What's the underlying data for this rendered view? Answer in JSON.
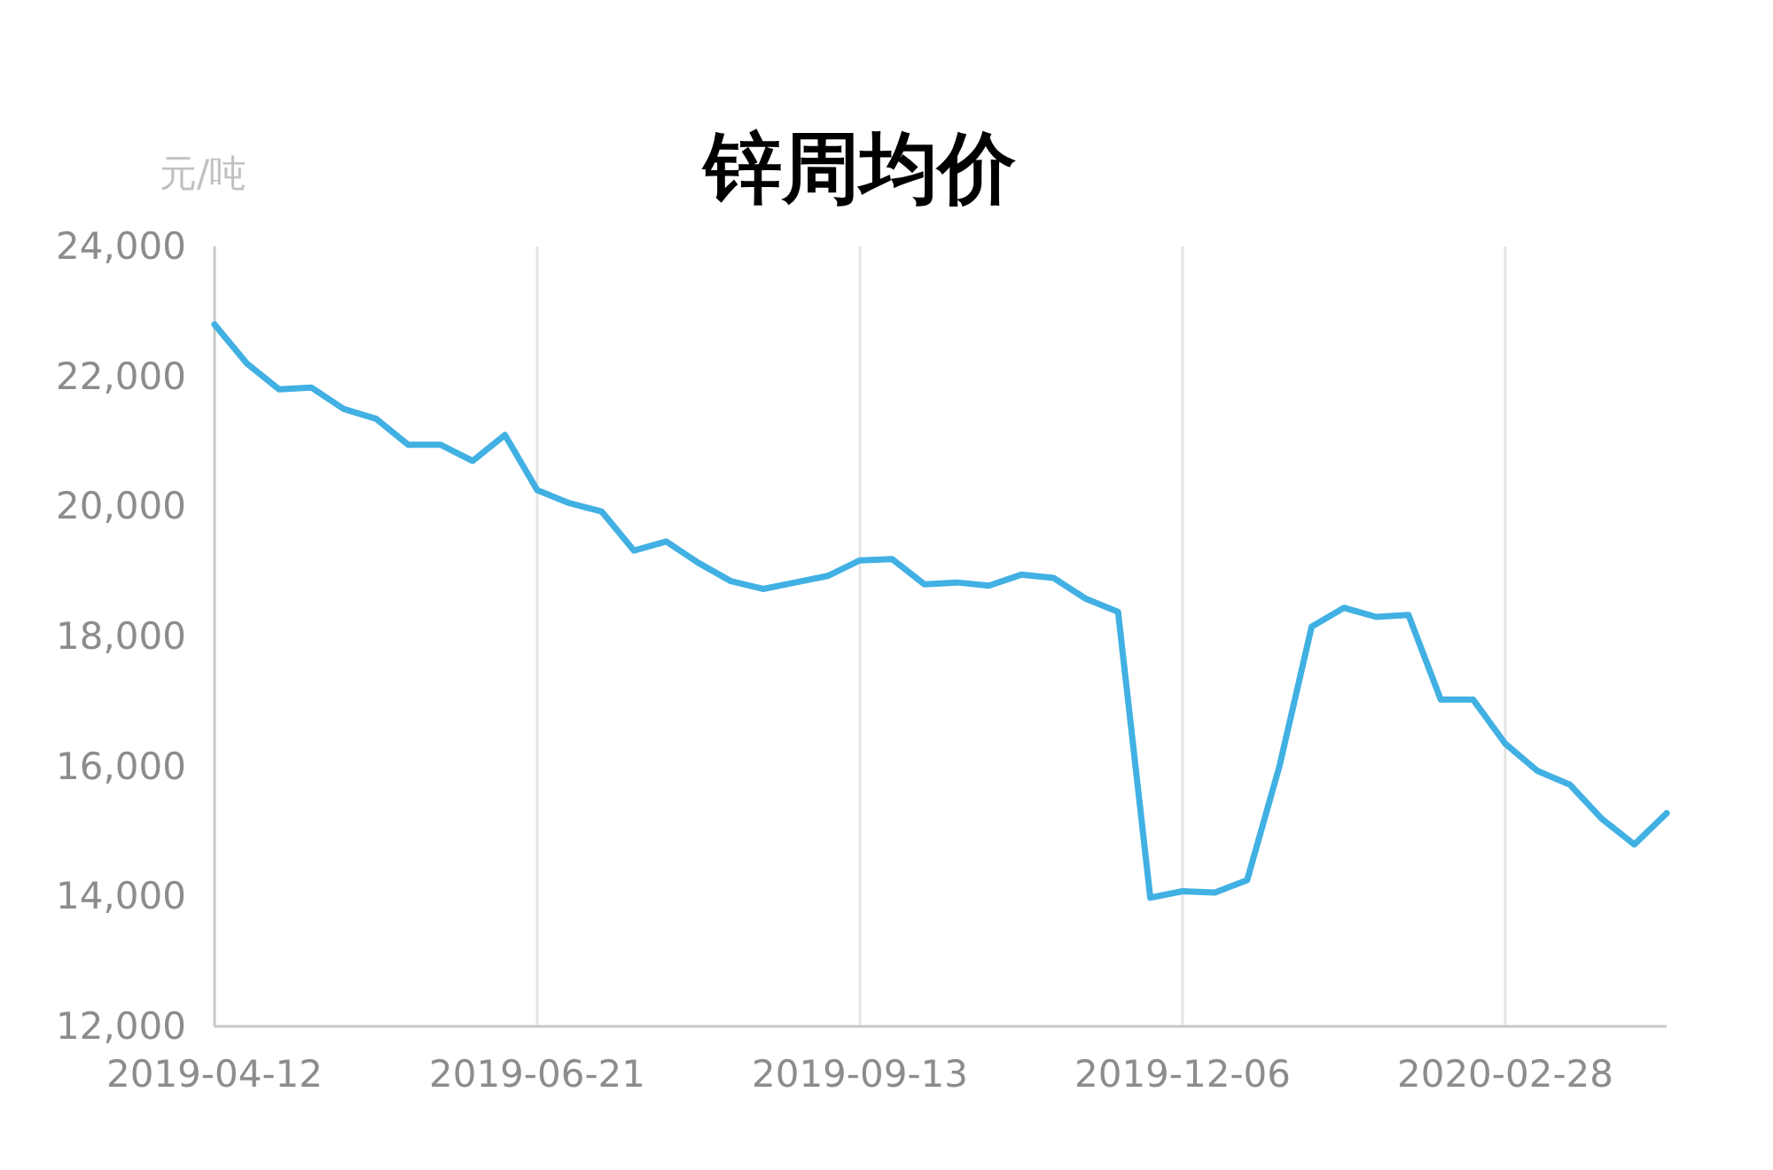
{
  "chart_data": {
    "type": "line",
    "title": "锌周均价",
    "ylabel": "元/吨",
    "categories": [
      "2019-04-12",
      null,
      null,
      null,
      null,
      null,
      null,
      null,
      null,
      null,
      "2019-06-21",
      null,
      null,
      null,
      null,
      null,
      null,
      null,
      null,
      null,
      "2019-09-13",
      null,
      null,
      null,
      null,
      null,
      null,
      null,
      null,
      null,
      "2019-12-06",
      null,
      null,
      null,
      null,
      null,
      null,
      null,
      null,
      null,
      "2020-02-28",
      null,
      null,
      null,
      null,
      null
    ],
    "series": [
      {
        "color": "#41b0e3",
        "values": [
          22800,
          22200,
          21800,
          21830,
          21500,
          21350,
          20950,
          20950,
          20700,
          21100,
          20250,
          20050,
          19920,
          19320,
          19460,
          19130,
          18850,
          18730,
          18830,
          18930,
          19170,
          19190,
          18800,
          18830,
          18780,
          18950,
          18900,
          18580,
          18380,
          13980,
          14080,
          14060,
          14250,
          16000,
          18150,
          18440,
          18300,
          18330,
          17030,
          17030,
          16350,
          15930,
          15720,
          15190,
          14800,
          15280
        ]
      }
    ],
    "ylim": [
      12000,
      24000
    ],
    "yticks": [
      {
        "value": 12000,
        "label": "12,000"
      },
      {
        "value": 14000,
        "label": "14,000"
      },
      {
        "value": 16000,
        "label": "16,000"
      },
      {
        "value": 18000,
        "label": "18,000"
      },
      {
        "value": 20000,
        "label": "20,000"
      },
      {
        "value": 22000,
        "label": "22,000"
      },
      {
        "value": 24000,
        "label": "24,000"
      }
    ],
    "grid": "x",
    "marker": "none",
    "line_style": "solid"
  }
}
